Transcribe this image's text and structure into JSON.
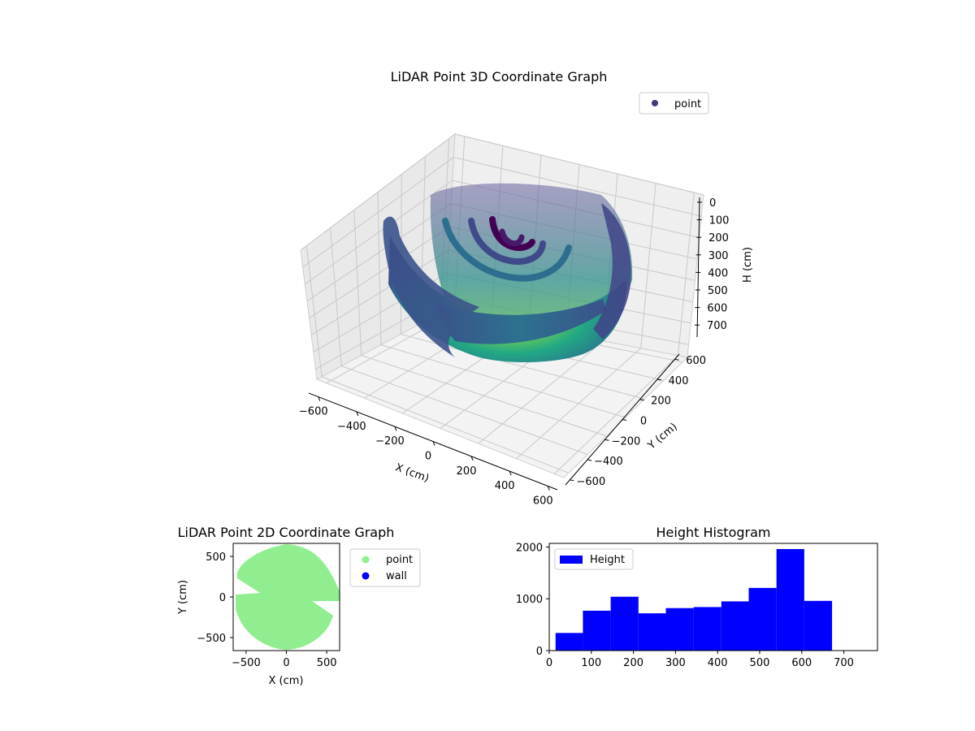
{
  "chart_data": [
    {
      "type": "scatter",
      "subtype": "3d",
      "title": "LiDAR Point 3D Coordinate Graph",
      "xlabel": "X (cm)",
      "ylabel": "Y (cm)",
      "zlabel": "H (cm)",
      "x_ticks": [
        "−600",
        "−400",
        "−200",
        "0",
        "200",
        "400",
        "600"
      ],
      "y_ticks": [
        "−600",
        "−400",
        "−200",
        "0",
        "200",
        "400",
        "600"
      ],
      "z_ticks": [
        "0",
        "100",
        "200",
        "300",
        "400",
        "500",
        "600",
        "700"
      ],
      "xlim": [
        -650,
        650
      ],
      "ylim": [
        -650,
        650
      ],
      "zlim": [
        0,
        760
      ],
      "z_inverted": true,
      "colormap": "viridis",
      "legend": {
        "entries": [
          "point"
        ],
        "position": "upper-right",
        "color": "#3d3b7a"
      },
      "grid": true
    },
    {
      "type": "scatter",
      "title": "LiDAR Point 2D Coordinate Graph",
      "xlabel": "X (cm)",
      "ylabel": "Y (cm)",
      "x_ticks": [
        "−500",
        "0",
        "500"
      ],
      "y_ticks": [
        "500",
        "0",
        "−500"
      ],
      "xlim": [
        -660,
        660
      ],
      "ylim": [
        -660,
        660
      ],
      "series": [
        {
          "name": "point",
          "color": "#90ee90"
        },
        {
          "name": "wall",
          "color": "#0000ff"
        }
      ],
      "legend_position": "outside-right"
    },
    {
      "type": "bar",
      "subtype": "histogram",
      "title": "Height Histogram",
      "x_ticks": [
        "0",
        "100",
        "200",
        "300",
        "400",
        "500",
        "600",
        "700"
      ],
      "y_ticks": [
        "0",
        "1000",
        "2000"
      ],
      "xlim": [
        0,
        780
      ],
      "ylim": [
        0,
        2070
      ],
      "bin_edges": [
        15,
        80,
        146,
        212,
        277,
        343,
        409,
        474,
        540,
        606,
        672
      ],
      "values": [
        340,
        770,
        1040,
        720,
        820,
        840,
        950,
        1210,
        1960,
        960
      ],
      "color": "#0000ff",
      "series": [
        {
          "name": "Height"
        }
      ],
      "legend_position": "upper-left"
    }
  ]
}
